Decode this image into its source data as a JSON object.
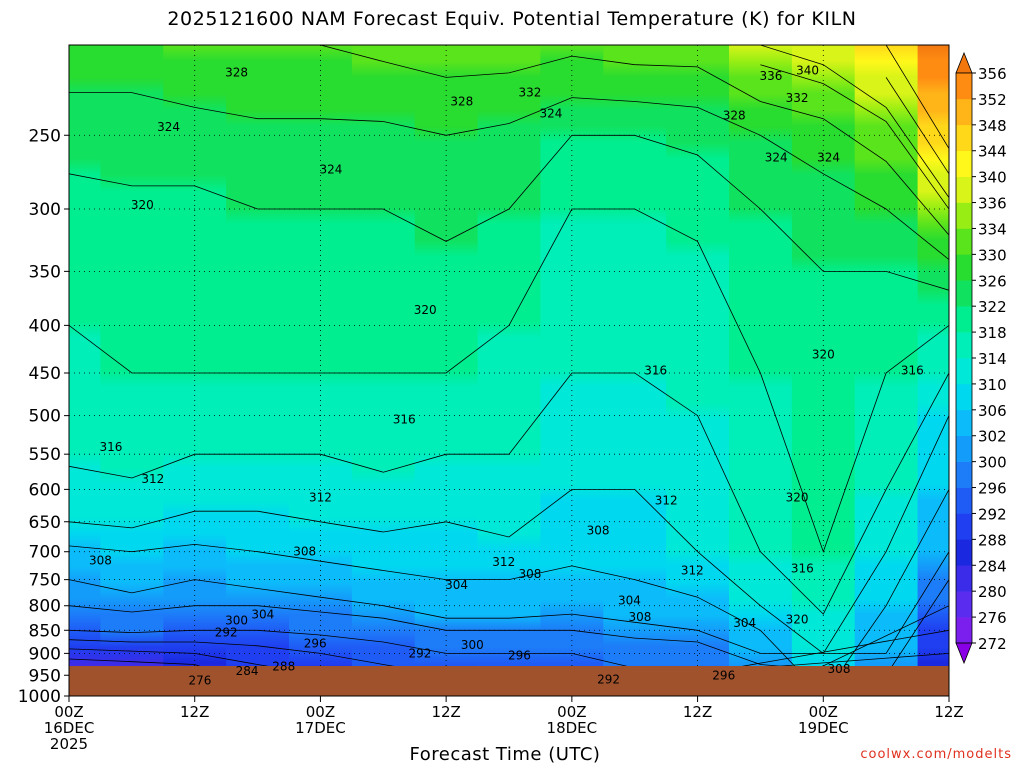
{
  "title": "2025121600 NAM Forecast Equiv. Potential Temperature (K) for KILN",
  "xlabel": "Forecast Time (UTC)",
  "credit": "coolwx.com/modelts",
  "chart_data": {
    "type": "heatmap",
    "title": "2025121600 NAM Forecast Equiv. Potential Temperature (K) for KILN",
    "xlabel": "Forecast Time (UTC)",
    "ylabel": "",
    "units": "K",
    "x_range_hours": [
      0,
      84
    ],
    "y_range_hpa": [
      200,
      1000
    ],
    "y_ticks": [
      250,
      300,
      350,
      400,
      450,
      500,
      550,
      600,
      650,
      700,
      750,
      800,
      850,
      900,
      950,
      1000
    ],
    "x_ticks": [
      {
        "hour": 0,
        "lines": [
          "00Z",
          "16DEC",
          "2025"
        ]
      },
      {
        "hour": 12,
        "lines": [
          "12Z"
        ]
      },
      {
        "hour": 24,
        "lines": [
          "00Z",
          "17DEC"
        ]
      },
      {
        "hour": 36,
        "lines": [
          "12Z"
        ]
      },
      {
        "hour": 48,
        "lines": [
          "00Z",
          "18DEC"
        ]
      },
      {
        "hour": 60,
        "lines": [
          "12Z"
        ]
      },
      {
        "hour": 72,
        "lines": [
          "00Z",
          "19DEC"
        ]
      },
      {
        "hour": 84,
        "lines": [
          "12Z"
        ]
      }
    ],
    "grid": true,
    "colorbar": {
      "placement": "right",
      "levels": [
        272,
        276,
        280,
        284,
        288,
        292,
        296,
        300,
        302,
        306,
        310,
        314,
        318,
        322,
        326,
        330,
        334,
        336,
        340,
        344,
        348,
        352,
        356
      ],
      "colors": [
        "#8a00e6",
        "#7a1fee",
        "#5a2cf0",
        "#3a2ce8",
        "#1a28e0",
        "#1f3ff0",
        "#1f5cf6",
        "#1d7cf8",
        "#149cfa",
        "#0cbcfa",
        "#00d8f0",
        "#00e8d8",
        "#00eeb8",
        "#00ee90",
        "#10e260",
        "#28dc30",
        "#5ae41c",
        "#98ee14",
        "#d8f418",
        "#fff81a",
        "#ffd81a",
        "#ffb418",
        "#ff8c12",
        "#f2780e"
      ]
    },
    "profiles": [
      {
        "hour": 0,
        "p_hpa": [
          1000,
          950,
          900,
          850,
          800,
          750,
          700,
          650,
          600,
          550,
          500,
          450,
          400,
          350,
          300,
          250,
          200
        ],
        "theta_e": [
          274,
          278,
          286,
          296,
          300,
          302,
          305,
          310,
          312,
          315,
          316,
          317,
          318,
          319,
          320,
          324,
          328
        ]
      },
      {
        "hour": 6,
        "p_hpa": [
          1000,
          950,
          900,
          850,
          800,
          750,
          700,
          650,
          600,
          550,
          500,
          450,
          400,
          350,
          300,
          250,
          200
        ],
        "theta_e": [
          275,
          279,
          287,
          297,
          301,
          303,
          306,
          311,
          313,
          316,
          317,
          318,
          319,
          320,
          321,
          324,
          328
        ]
      },
      {
        "hour": 12,
        "p_hpa": [
          1000,
          950,
          900,
          850,
          800,
          750,
          700,
          650,
          600,
          550,
          500,
          450,
          400,
          350,
          300,
          250,
          200
        ],
        "theta_e": [
          276,
          280,
          288,
          296,
          300,
          302,
          305,
          309,
          312,
          314,
          316,
          318,
          319,
          320,
          321,
          324,
          330
        ]
      },
      {
        "hour": 18,
        "p_hpa": [
          1000,
          950,
          900,
          850,
          800,
          750,
          700,
          650,
          600,
          550,
          500,
          450,
          400,
          350,
          300,
          250,
          200
        ],
        "theta_e": [
          282,
          286,
          290,
          296,
          300,
          303,
          306,
          309,
          312,
          314,
          316,
          318,
          319,
          320,
          322,
          325,
          330
        ]
      },
      {
        "hour": 24,
        "p_hpa": [
          1000,
          950,
          900,
          850,
          800,
          750,
          700,
          650,
          600,
          550,
          500,
          450,
          400,
          350,
          300,
          250,
          200
        ],
        "theta_e": [
          286,
          288,
          292,
          297,
          301,
          304,
          307,
          310,
          312,
          314,
          316,
          318,
          319,
          320,
          322,
          325,
          330
        ]
      },
      {
        "hour": 30,
        "p_hpa": [
          1000,
          950,
          900,
          850,
          800,
          750,
          700,
          650,
          600,
          550,
          500,
          450,
          400,
          350,
          300,
          250,
          200
        ],
        "theta_e": [
          288,
          290,
          294,
          298,
          302,
          305,
          308,
          311,
          313,
          315,
          316,
          318,
          319,
          320,
          322,
          325,
          331
        ]
      },
      {
        "hour": 36,
        "p_hpa": [
          1000,
          950,
          900,
          850,
          800,
          750,
          700,
          650,
          600,
          550,
          500,
          450,
          400,
          350,
          300,
          250,
          200
        ],
        "theta_e": [
          290,
          292,
          296,
          300,
          304,
          306,
          308,
          310,
          312,
          314,
          316,
          318,
          319,
          321,
          323,
          326,
          332
        ]
      },
      {
        "hour": 42,
        "p_hpa": [
          1000,
          950,
          900,
          850,
          800,
          750,
          700,
          650,
          600,
          550,
          500,
          450,
          400,
          350,
          300,
          250,
          200
        ],
        "theta_e": [
          291,
          293,
          296,
          300,
          304,
          306,
          309,
          311,
          313,
          314,
          315,
          316,
          318,
          320,
          322,
          325,
          332
        ]
      },
      {
        "hour": 48,
        "p_hpa": [
          1000,
          950,
          900,
          850,
          800,
          750,
          700,
          650,
          600,
          550,
          500,
          450,
          400,
          350,
          300,
          250,
          200
        ],
        "theta_e": [
          292,
          294,
          296,
          300,
          303,
          305,
          307,
          308,
          310,
          312,
          313,
          314,
          315,
          317,
          318,
          322,
          331
        ]
      },
      {
        "hour": 54,
        "p_hpa": [
          1000,
          950,
          900,
          850,
          800,
          750,
          700,
          650,
          600,
          550,
          500,
          450,
          400,
          350,
          300,
          250,
          200
        ],
        "theta_e": [
          293,
          295,
          298,
          301,
          304,
          306,
          308,
          309,
          310,
          312,
          313,
          314,
          315,
          316,
          318,
          322,
          332
        ]
      },
      {
        "hour": 60,
        "p_hpa": [
          1000,
          950,
          900,
          850,
          800,
          750,
          700,
          650,
          600,
          550,
          500,
          450,
          400,
          350,
          300,
          250,
          200
        ],
        "theta_e": [
          294,
          296,
          298,
          302,
          305,
          308,
          310,
          311,
          312,
          313,
          314,
          315,
          316,
          317,
          319,
          323,
          332
        ]
      },
      {
        "hour": 66,
        "p_hpa": [
          1000,
          950,
          900,
          850,
          800,
          750,
          700,
          650,
          600,
          550,
          500,
          450,
          400,
          350,
          300,
          250,
          200
        ],
        "theta_e": [
          296,
          298,
          302,
          306,
          310,
          313,
          314,
          315,
          316,
          316,
          317,
          318,
          319,
          320,
          322,
          326,
          336
        ]
      },
      {
        "hour": 72,
        "p_hpa": [
          1000,
          950,
          900,
          850,
          800,
          750,
          700,
          650,
          600,
          550,
          500,
          450,
          400,
          350,
          300,
          250,
          200
        ],
        "theta_e": [
          306,
          308,
          310,
          312,
          315,
          317,
          318,
          319,
          320,
          320,
          320,
          320,
          321,
          322,
          324,
          328,
          338
        ]
      },
      {
        "hour": 78,
        "p_hpa": [
          1000,
          950,
          900,
          850,
          800,
          750,
          700,
          650,
          600,
          550,
          500,
          450,
          400,
          350,
          300,
          250,
          200
        ],
        "theta_e": [
          300,
          300,
          302,
          304,
          306,
          308,
          310,
          312,
          314,
          316,
          317,
          318,
          320,
          322,
          326,
          332,
          344
        ]
      },
      {
        "hour": 84,
        "p_hpa": [
          1000,
          950,
          900,
          850,
          800,
          750,
          700,
          650,
          600,
          550,
          500,
          450,
          400,
          350,
          300,
          250,
          200
        ],
        "theta_e": [
          284,
          286,
          288,
          292,
          296,
          300,
          302,
          304,
          306,
          308,
          310,
          314,
          318,
          324,
          334,
          346,
          356
        ]
      }
    ],
    "contour_labels": [
      {
        "value": "328",
        "hour": 16.0,
        "p_hpa": 214
      },
      {
        "value": "328",
        "hour": 37.5,
        "p_hpa": 230
      },
      {
        "value": "332",
        "hour": 44.0,
        "p_hpa": 225
      },
      {
        "value": "336",
        "hour": 67.0,
        "p_hpa": 216
      },
      {
        "value": "340",
        "hour": 70.5,
        "p_hpa": 213
      },
      {
        "value": "332",
        "hour": 69.5,
        "p_hpa": 228
      },
      {
        "value": "324",
        "hour": 9.5,
        "p_hpa": 245
      },
      {
        "value": "324",
        "hour": 46.0,
        "p_hpa": 237
      },
      {
        "value": "328",
        "hour": 63.5,
        "p_hpa": 238
      },
      {
        "value": "324",
        "hour": 25.0,
        "p_hpa": 272
      },
      {
        "value": "324",
        "hour": 67.5,
        "p_hpa": 264
      },
      {
        "value": "324",
        "hour": 72.5,
        "p_hpa": 264
      },
      {
        "value": "320",
        "hour": 7.0,
        "p_hpa": 297
      },
      {
        "value": "320",
        "hour": 34.0,
        "p_hpa": 385
      },
      {
        "value": "320",
        "hour": 72.0,
        "p_hpa": 430
      },
      {
        "value": "316",
        "hour": 56.0,
        "p_hpa": 447
      },
      {
        "value": "316",
        "hour": 80.5,
        "p_hpa": 447
      },
      {
        "value": "316",
        "hour": 32.0,
        "p_hpa": 505
      },
      {
        "value": "316",
        "hour": 4.0,
        "p_hpa": 540
      },
      {
        "value": "312",
        "hour": 8.0,
        "p_hpa": 585
      },
      {
        "value": "312",
        "hour": 24.0,
        "p_hpa": 612
      },
      {
        "value": "312",
        "hour": 57.0,
        "p_hpa": 617
      },
      {
        "value": "320",
        "hour": 69.5,
        "p_hpa": 612
      },
      {
        "value": "308",
        "hour": 50.5,
        "p_hpa": 664
      },
      {
        "value": "308",
        "hour": 22.5,
        "p_hpa": 700
      },
      {
        "value": "308",
        "hour": 3.0,
        "p_hpa": 715
      },
      {
        "value": "312",
        "hour": 41.5,
        "p_hpa": 718
      },
      {
        "value": "308",
        "hour": 44.0,
        "p_hpa": 740
      },
      {
        "value": "312",
        "hour": 59.5,
        "p_hpa": 733
      },
      {
        "value": "316",
        "hour": 70.0,
        "p_hpa": 730
      },
      {
        "value": "304",
        "hour": 37.0,
        "p_hpa": 760
      },
      {
        "value": "304",
        "hour": 53.5,
        "p_hpa": 790
      },
      {
        "value": "304",
        "hour": 18.5,
        "p_hpa": 818
      },
      {
        "value": "300",
        "hour": 16.0,
        "p_hpa": 830
      },
      {
        "value": "308",
        "hour": 54.5,
        "p_hpa": 823
      },
      {
        "value": "304",
        "hour": 64.5,
        "p_hpa": 835
      },
      {
        "value": "320",
        "hour": 69.5,
        "p_hpa": 828
      },
      {
        "value": "292",
        "hour": 15.0,
        "p_hpa": 855
      },
      {
        "value": "296",
        "hour": 23.5,
        "p_hpa": 878
      },
      {
        "value": "300",
        "hour": 38.5,
        "p_hpa": 882
      },
      {
        "value": "292",
        "hour": 33.5,
        "p_hpa": 900
      },
      {
        "value": "296",
        "hour": 43.0,
        "p_hpa": 905
      },
      {
        "value": "284",
        "hour": 17.0,
        "p_hpa": 940
      },
      {
        "value": "288",
        "hour": 20.5,
        "p_hpa": 930
      },
      {
        "value": "308",
        "hour": 73.5,
        "p_hpa": 935
      },
      {
        "value": "296",
        "hour": 62.5,
        "p_hpa": 950
      },
      {
        "value": "292",
        "hour": 51.5,
        "p_hpa": 960
      },
      {
        "value": "276",
        "hour": 12.5,
        "p_hpa": 962
      }
    ]
  }
}
